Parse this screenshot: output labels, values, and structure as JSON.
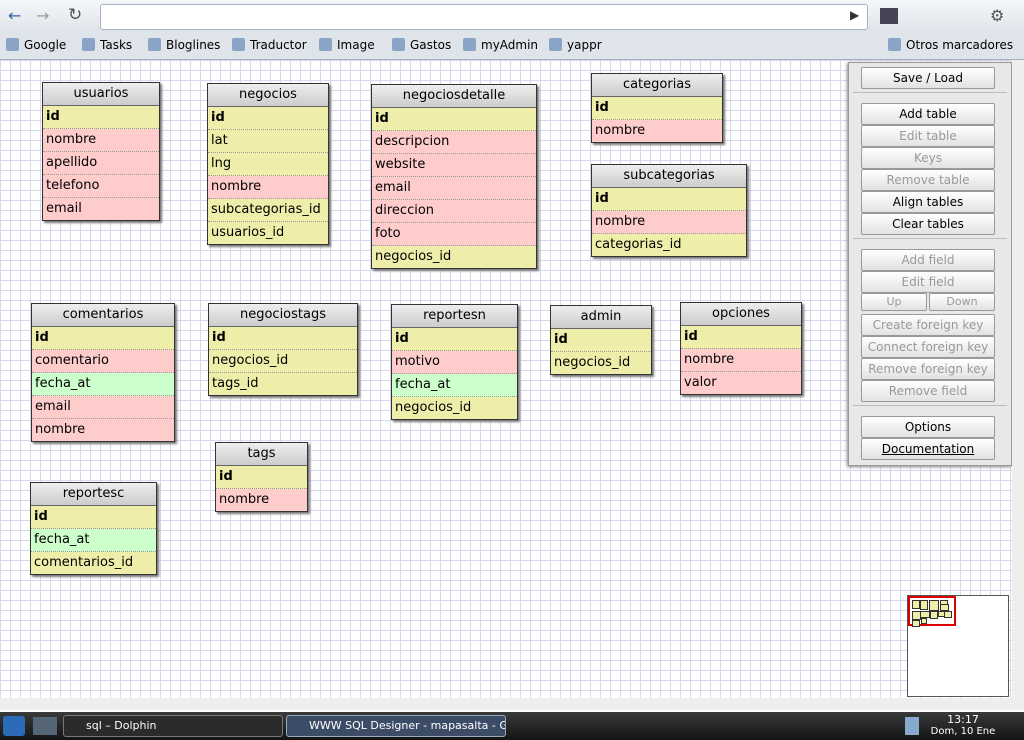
{
  "browser": {
    "bookmarks": [
      "Google",
      "Tasks",
      "Bloglines",
      "Traductor",
      "Image",
      "Gastos",
      "myAdmin",
      "yappr"
    ],
    "other_bookmarks": "Otros marcadores"
  },
  "tables": [
    {
      "name": "usuarios",
      "fields": [
        {
          "name": "id",
          "color": "#eeeeaa"
        },
        {
          "name": "nombre",
          "color": "#ffcccc"
        },
        {
          "name": "apellido",
          "color": "#ffcccc"
        },
        {
          "name": "telefono",
          "color": "#ffcccc"
        },
        {
          "name": "email",
          "color": "#ffcccc"
        }
      ]
    },
    {
      "name": "negocios",
      "fields": [
        {
          "name": "id",
          "color": "#eeeeaa"
        },
        {
          "name": "lat",
          "color": "#eeeeaa"
        },
        {
          "name": "lng",
          "color": "#eeeeaa"
        },
        {
          "name": "nombre",
          "color": "#ffcccc"
        },
        {
          "name": "subcategorias_id",
          "color": "#eeeeaa"
        },
        {
          "name": "usuarios_id",
          "color": "#eeeeaa"
        }
      ]
    },
    {
      "name": "negociosdetalle",
      "fields": [
        {
          "name": "id",
          "color": "#eeeeaa"
        },
        {
          "name": "descripcion",
          "color": "#ffcccc"
        },
        {
          "name": "website",
          "color": "#ffcccc"
        },
        {
          "name": "email",
          "color": "#ffcccc"
        },
        {
          "name": "direccion",
          "color": "#ffcccc"
        },
        {
          "name": "foto",
          "color": "#ffcccc"
        },
        {
          "name": "negocios_id",
          "color": "#eeeeaa"
        }
      ]
    },
    {
      "name": "categorias",
      "fields": [
        {
          "name": "id",
          "color": "#eeeeaa"
        },
        {
          "name": "nombre",
          "color": "#ffcccc"
        }
      ]
    },
    {
      "name": "subcategorias",
      "fields": [
        {
          "name": "id",
          "color": "#eeeeaa"
        },
        {
          "name": "nombre",
          "color": "#ffcccc"
        },
        {
          "name": "categorias_id",
          "color": "#eeeeaa"
        }
      ]
    },
    {
      "name": "comentarios",
      "fields": [
        {
          "name": "id",
          "color": "#eeeeaa"
        },
        {
          "name": "comentario",
          "color": "#ffcccc"
        },
        {
          "name": "fecha_at",
          "color": "#ccffcc"
        },
        {
          "name": "email",
          "color": "#ffcccc"
        },
        {
          "name": "nombre",
          "color": "#ffcccc"
        }
      ]
    },
    {
      "name": "negociostags",
      "fields": [
        {
          "name": "id",
          "color": "#eeeeaa"
        },
        {
          "name": "negocios_id",
          "color": "#eeeeaa"
        },
        {
          "name": "tags_id",
          "color": "#eeeeaa"
        }
      ]
    },
    {
      "name": "reportesn",
      "fields": [
        {
          "name": "id",
          "color": "#eeeeaa"
        },
        {
          "name": "motivo",
          "color": "#ffcccc"
        },
        {
          "name": "fecha_at",
          "color": "#ccffcc"
        },
        {
          "name": "negocios_id",
          "color": "#eeeeaa"
        }
      ]
    },
    {
      "name": "admin",
      "fields": [
        {
          "name": "id",
          "color": "#eeeeaa"
        },
        {
          "name": "negocios_id",
          "color": "#eeeeaa"
        }
      ]
    },
    {
      "name": "opciones",
      "fields": [
        {
          "name": "id",
          "color": "#eeeeaa"
        },
        {
          "name": "nombre",
          "color": "#ffcccc"
        },
        {
          "name": "valor",
          "color": "#ffcccc"
        }
      ]
    },
    {
      "name": "tags",
      "fields": [
        {
          "name": "id",
          "color": "#eeeeaa"
        },
        {
          "name": "nombre",
          "color": "#ffcccc"
        }
      ]
    },
    {
      "name": "reportesc",
      "fields": [
        {
          "name": "id",
          "color": "#eeeeaa"
        },
        {
          "name": "fecha_at",
          "color": "#ccffcc"
        },
        {
          "name": "comentarios_id",
          "color": "#eeeeaa"
        }
      ]
    }
  ],
  "sidebar": {
    "groups": [
      [
        {
          "label": "Save / Load",
          "enabled": true
        }
      ],
      [
        {
          "label": "Add table",
          "enabled": true
        },
        {
          "label": "Edit table",
          "enabled": false
        },
        {
          "label": "Keys",
          "enabled": false
        },
        {
          "label": "Remove table",
          "enabled": false
        },
        {
          "label": "Align tables",
          "enabled": true
        },
        {
          "label": "Clear tables",
          "enabled": true
        }
      ],
      [
        {
          "label": "Add field",
          "enabled": false
        },
        {
          "label": "Edit field",
          "enabled": false
        },
        {
          "label": "Up",
          "enabled": false
        },
        {
          "label": "Down",
          "enabled": false
        },
        {
          "label": "Create foreign key",
          "enabled": false
        },
        {
          "label": "Connect foreign key",
          "enabled": false
        },
        {
          "label": "Remove foreign key",
          "enabled": false
        },
        {
          "label": "Remove field",
          "enabled": false
        }
      ],
      [
        {
          "label": "Options",
          "enabled": true
        },
        {
          "label": "Documentation",
          "enabled": true
        }
      ]
    ]
  },
  "taskbar": {
    "windows": [
      "sql – Dolphin",
      "WWW SQL Designer - mapasalta - Goog"
    ],
    "time": "13:17",
    "date": "Dom, 10 Ene"
  }
}
